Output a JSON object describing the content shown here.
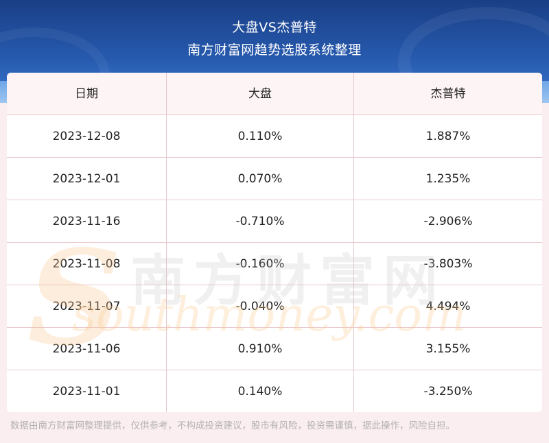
{
  "header": {
    "title": "大盘VS杰普特",
    "subtitle": "南方财富网趋势选股系统整理"
  },
  "table": {
    "columns": [
      "日期",
      "大盘",
      "杰普特"
    ],
    "rows": [
      [
        "2023-12-08",
        "0.110%",
        "1.887%"
      ],
      [
        "2023-12-01",
        "0.070%",
        "1.235%"
      ],
      [
        "2023-11-16",
        "-0.710%",
        "-2.906%"
      ],
      [
        "2023-11-08",
        "-0.160%",
        "-3.803%"
      ],
      [
        "2023-11-07",
        "-0.040%",
        "4.494%"
      ],
      [
        "2023-11-06",
        "0.910%",
        "3.155%"
      ],
      [
        "2023-11-01",
        "0.140%",
        "-3.250%"
      ]
    ]
  },
  "watermark": {
    "cn": "南方财富网",
    "en": "southmoney.com"
  },
  "footer": {
    "disclaimer": "数据由南方财富网整理提供，仅供参考，不构成投资建议，股市有风险，投资需谨慎，据此操作，风险自担。"
  },
  "colors": {
    "header_bg": "#2659ad",
    "page_bg": "#fbeef0",
    "grid_line": "#e9c6cc",
    "text": "#222222",
    "footer_text": "#b2b2b2"
  }
}
